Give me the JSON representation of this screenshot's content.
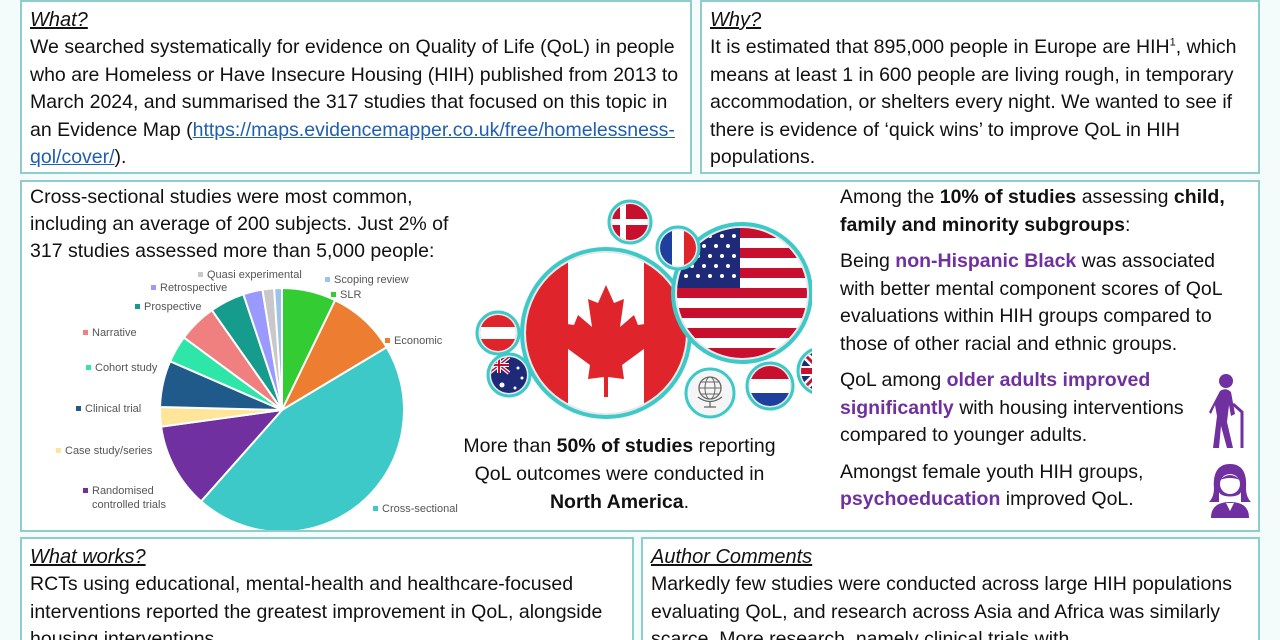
{
  "what": {
    "title": "What?",
    "body_pre": "We searched systematically for evidence on Quality of Life (QoL) in people who are Homeless or Have Insecure Housing (HIH) published from 2013 to March 2024, and summarised the 317 studies that focused on this topic in an Evidence Map (",
    "link": "https://maps.evidencemapper.co.uk/free/homelessness-qol/cover/",
    "body_post": ")."
  },
  "why": {
    "title": "Why?",
    "body_pre": "It is estimated that 895,000 people in Europe are HIH",
    "sup": "1",
    "body_post": ", which means at least 1 in 600 people are living rough, in temporary accommodation, or shelters every night. We wanted to see if there is evidence of ‘quick wins’ to improve QoL in HIH populations."
  },
  "studies": {
    "text": "Cross-sectional studies were most common, including an average of 200 subjects. Just 2% of 317 studies assessed more than 5,000 people:"
  },
  "chart_data": {
    "type": "pie",
    "slices": [
      {
        "label": "SLR",
        "value": 7,
        "color": "#33cc33"
      },
      {
        "label": "Economic",
        "value": 9,
        "color": "#ed7d31"
      },
      {
        "label": "Cross-sectional",
        "value": 44,
        "color": "#3ec9c9"
      },
      {
        "label": "Randomised controlled trials",
        "value": 11,
        "color": "#7030a0"
      },
      {
        "label": "Case study/series",
        "value": 2.5,
        "color": "#ffe599"
      },
      {
        "label": "Clinical trial",
        "value": 6,
        "color": "#1f5a8a"
      },
      {
        "label": "Cohort study",
        "value": 3.5,
        "color": "#2ee6a8"
      },
      {
        "label": "Narrative",
        "value": 5,
        "color": "#f08080"
      },
      {
        "label": "Prospective",
        "value": 4.5,
        "color": "#169c8c"
      },
      {
        "label": "Retrospective",
        "value": 2.5,
        "color": "#9999ff"
      },
      {
        "label": "Quasi experimental",
        "value": 1.5,
        "color": "#c8c8c8"
      },
      {
        "label": "Scoping review",
        "value": 1,
        "color": "#9dc3e6"
      }
    ]
  },
  "flags": {
    "caption_pre": "More than ",
    "caption_bold1": "50% of studies",
    "caption_mid": " reporting QoL outcomes were conducted in ",
    "caption_bold2": "North America",
    "caption_post": "."
  },
  "subgroups": {
    "intro_pre": "Among the ",
    "intro_b1": "10% of studies",
    "intro_mid": " assessing ",
    "intro_b2": "child, family and minority subgroups",
    "intro_post": ":",
    "black_pre": "Being ",
    "black_hl": "non-Hispanic Black",
    "black_post": " was associated with better mental component scores of QoL evaluations within HIH groups compared to those of other racial and ethnic groups.",
    "older_pre": "QoL among ",
    "older_hl": "older adults improved significantly",
    "older_post": " with housing interventions compared to younger adults.",
    "youth_pre": "Amongst female youth HIH groups, ",
    "youth_hl": "psychoeducation",
    "youth_post": " improved QoL."
  },
  "works": {
    "title": "What works?",
    "body": "RCTs using educational, mental-health and healthcare-focused interventions reported the greatest improvement in QoL, alongside housing interventions."
  },
  "author": {
    "title": "Author Comments",
    "body": "Markedly few studies were conducted across large HIH populations evaluating QoL, and research across Asia and Africa was similarly scarce. More research, namely clinical trials with"
  },
  "colors": {
    "accent_purple": "#7030a0",
    "border": "#8fcccc",
    "link": "#1f5fb0"
  }
}
